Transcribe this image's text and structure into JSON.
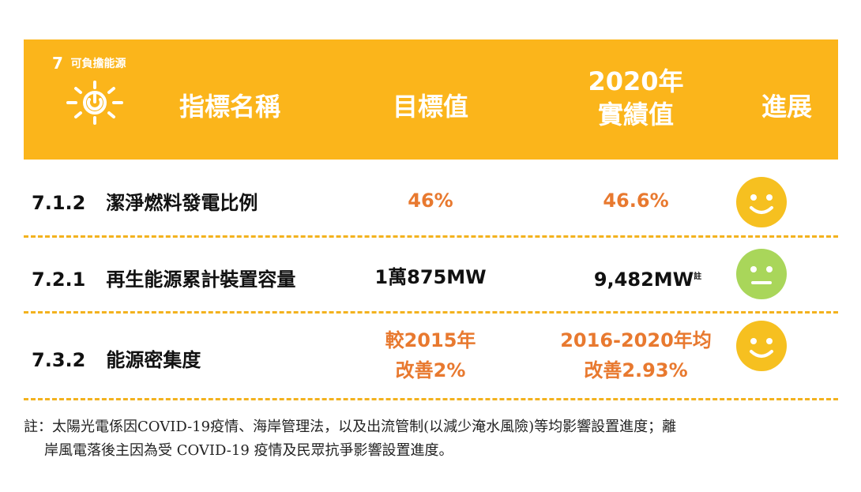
{
  "header": {
    "sdg_number": "7",
    "sdg_name": "可負擔能源",
    "col_name": "指標名稱",
    "col_target": "目標值",
    "col_actual_line1": "2020年",
    "col_actual_line2": "實績值",
    "col_progress": "進展",
    "background_color": "#fbb51b"
  },
  "rows": [
    {
      "code": "7.1.2",
      "name": "潔淨燃料發電比例",
      "target": "46%",
      "actual": "46.6%",
      "progress": "smile-face",
      "face_color": "#f6c020"
    },
    {
      "code": "7.2.1",
      "name": "再生能源累計裝置容量",
      "target": "1萬875MW",
      "actual": "9,482MW",
      "actual_note": "註",
      "progress": "neutral-face",
      "face_color": "#a9d65a"
    },
    {
      "code": "7.3.2",
      "name": "能源密集度",
      "target_line1": "較2015年",
      "target_line2": "改善2%",
      "actual_line1": "2016-2020年均",
      "actual_line2": "改善2.93%",
      "progress": "smile-face",
      "face_color": "#f6c020"
    }
  ],
  "note": {
    "line1": "註：太陽光電係因COVID-19疫情、海岸管理法，以及出流管制(以減少淹水風險)等均影響設置進度；離",
    "line2": "岸風電落後主因為受 COVID-19 疫情及民眾抗爭影響設置進度。"
  }
}
